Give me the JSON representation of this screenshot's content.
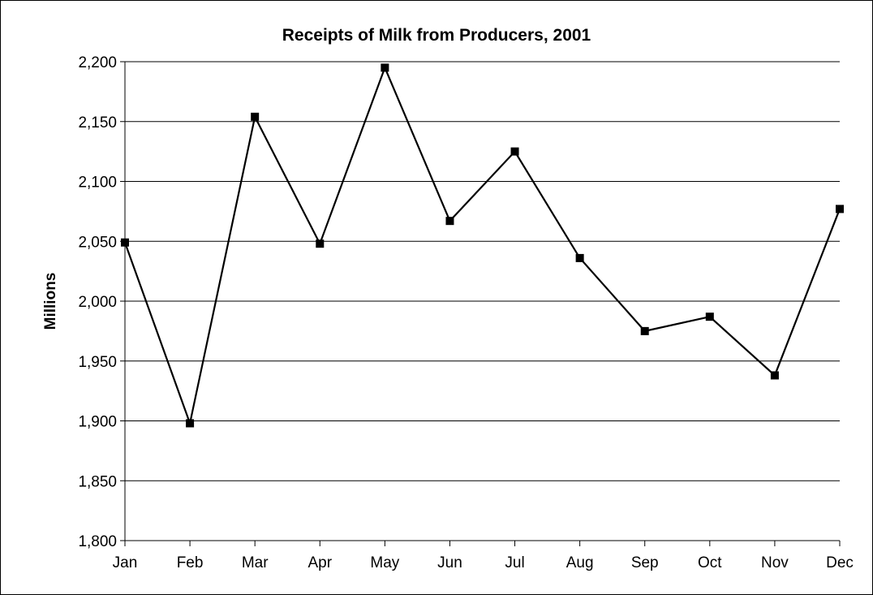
{
  "chart_data": {
    "type": "line",
    "title": "Receipts of Milk from Producers, 2001",
    "xlabel": "",
    "ylabel": "Millions",
    "categories": [
      "Jan",
      "Feb",
      "Mar",
      "Apr",
      "May",
      "Jun",
      "Jul",
      "Aug",
      "Sep",
      "Oct",
      "Nov",
      "Dec"
    ],
    "series": [
      {
        "values": [
          2049,
          1898,
          2154,
          2048,
          2195,
          2067,
          2125,
          2036,
          1975,
          1987,
          1938,
          2077
        ]
      }
    ],
    "ylim": [
      1800,
      2200
    ],
    "yticks": [
      1800,
      1850,
      1900,
      1950,
      2000,
      2050,
      2100,
      2150,
      2200
    ],
    "ytick_labels": [
      "1,800",
      "1,850",
      "1,900",
      "1,950",
      "2,000",
      "2,050",
      "2,100",
      "2,150",
      "2,200"
    ],
    "grid": true,
    "legend": "none",
    "line_color": "#000000",
    "marker": "square"
  }
}
